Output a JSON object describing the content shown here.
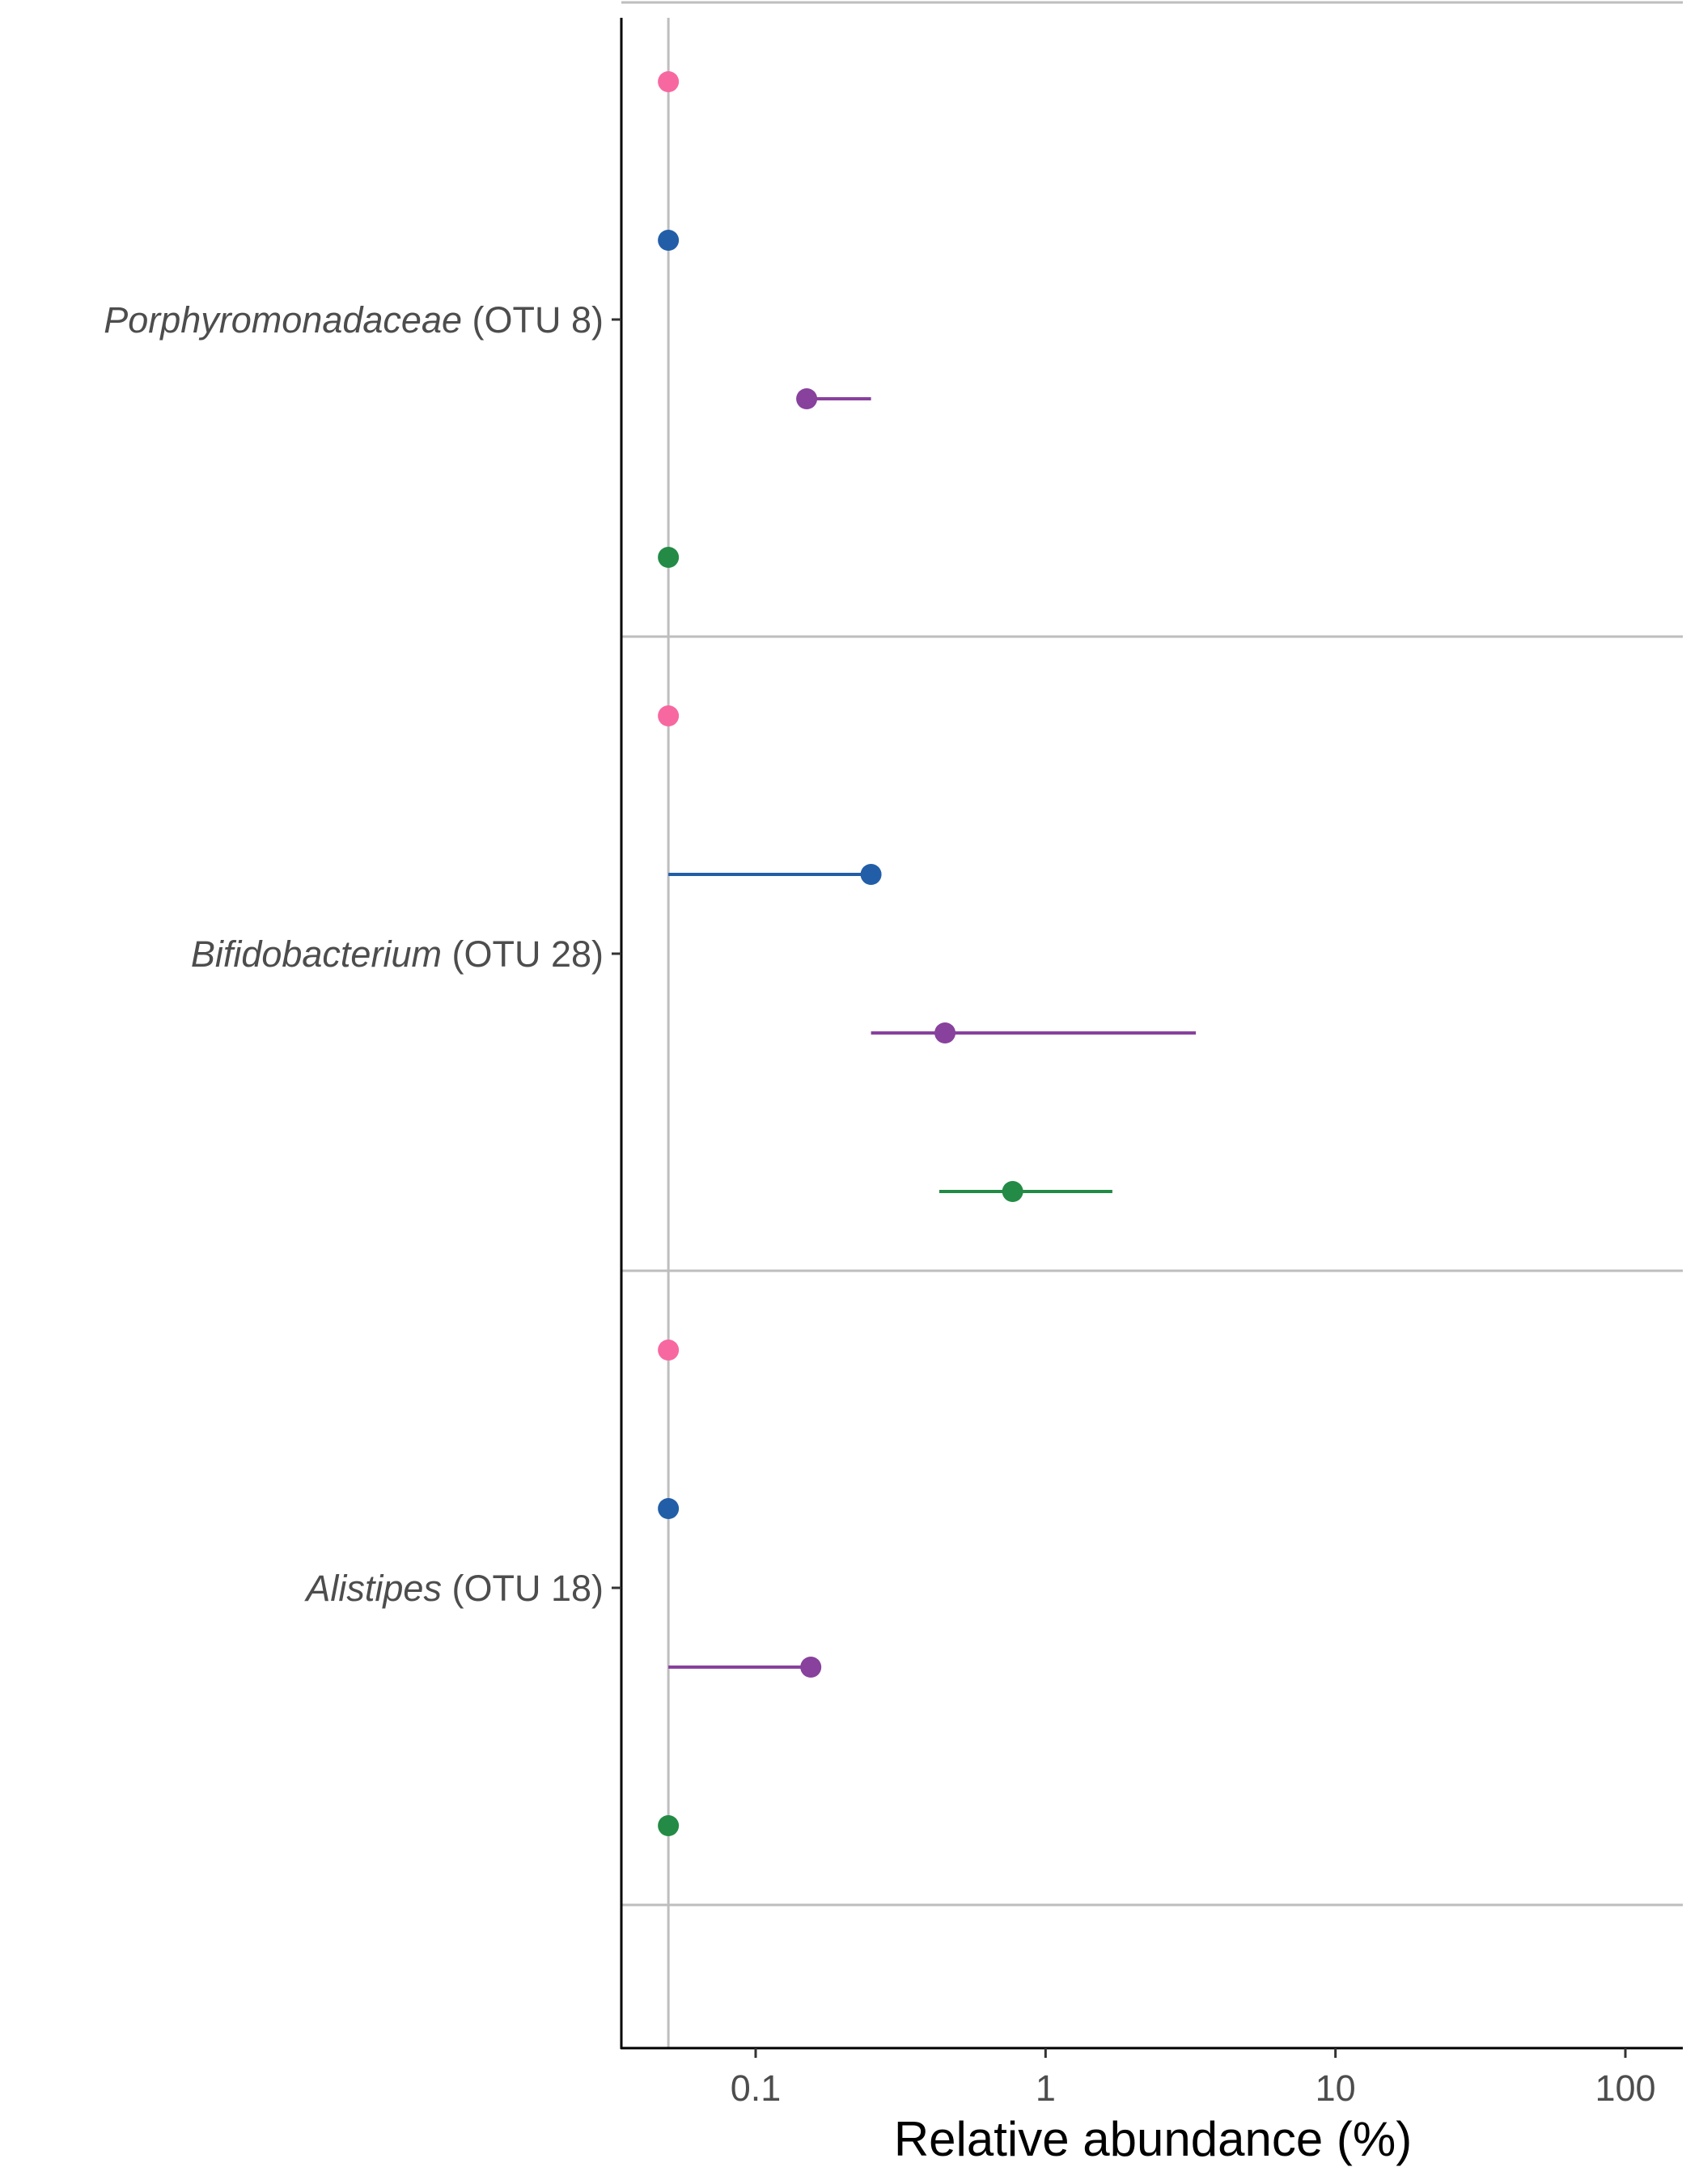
{
  "chart_data": {
    "type": "dot-range",
    "xlabel": "Relative abundance (%)",
    "x_scale": "log10",
    "xlim": [
      0.035,
      140
    ],
    "x_ticks": [
      {
        "value": 0.1,
        "label": "0.1"
      },
      {
        "value": 1,
        "label": "1"
      },
      {
        "value": 10,
        "label": "10"
      },
      {
        "value": 100,
        "label": "100"
      }
    ],
    "detection_limit_line": 0.05,
    "grid": "horizontal separators between taxa",
    "legend": "none",
    "series_colors": [
      "#f768a1",
      "#225ea8",
      "#88419d",
      "#238b45"
    ],
    "groups": [
      {
        "label_italic": "Porphyromonadaceae",
        "label_suffix": " (OTU 8)",
        "points": [
          {
            "series": 0,
            "value": 0.05,
            "low": null,
            "high": null
          },
          {
            "series": 1,
            "value": 0.05,
            "low": null,
            "high": null
          },
          {
            "series": 2,
            "value": 0.15,
            "low": 0.15,
            "high": 0.25
          },
          {
            "series": 3,
            "value": 0.05,
            "low": null,
            "high": null
          }
        ]
      },
      {
        "label_italic": "Bifidobacterium",
        "label_suffix": " (OTU 28)",
        "points": [
          {
            "series": 0,
            "value": 0.05,
            "low": null,
            "high": null
          },
          {
            "series": 1,
            "value": 0.25,
            "low": 0.05,
            "high": 0.25
          },
          {
            "series": 2,
            "value": 0.45,
            "low": 0.25,
            "high": 3.3
          },
          {
            "series": 3,
            "value": 0.77,
            "low": 0.43,
            "high": 1.7
          }
        ]
      },
      {
        "label_italic": "Alistipes",
        "label_suffix": " (OTU 18)",
        "points": [
          {
            "series": 0,
            "value": 0.05,
            "low": null,
            "high": null
          },
          {
            "series": 1,
            "value": 0.05,
            "low": null,
            "high": null
          },
          {
            "series": 2,
            "value": 0.155,
            "low": 0.05,
            "high": 0.155
          },
          {
            "series": 3,
            "value": 0.05,
            "low": null,
            "high": null
          }
        ]
      }
    ]
  }
}
